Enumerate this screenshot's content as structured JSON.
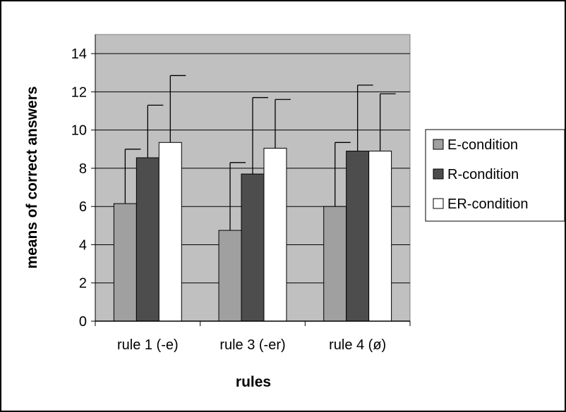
{
  "chart_data": {
    "type": "bar",
    "categories": [
      "rule 1 (-e)",
      "rule 3 (-er)",
      "rule 4 (ø)"
    ],
    "series": [
      {
        "name": "E-condition",
        "values": [
          6.15,
          4.75,
          6.0
        ],
        "error_upper": [
          9.0,
          8.3,
          9.35
        ],
        "color": "#a0a0a0"
      },
      {
        "name": "R-condition",
        "values": [
          8.55,
          7.7,
          8.9
        ],
        "error_upper": [
          11.3,
          11.7,
          12.35
        ],
        "color": "#4d4d4d"
      },
      {
        "name": "ER-condition",
        "values": [
          9.35,
          9.05,
          8.9
        ],
        "error_upper": [
          12.85,
          11.6,
          11.9
        ],
        "color": "#ffffff"
      }
    ],
    "y_ticks": [
      "0",
      "2",
      "4",
      "6",
      "8",
      "10",
      "12",
      "14"
    ],
    "ylim": [
      0,
      15
    ],
    "xlabel": "rules",
    "ylabel": "means of correct answers",
    "grid": true,
    "legend_position": "right",
    "plot_background": "#c0c0c0"
  }
}
